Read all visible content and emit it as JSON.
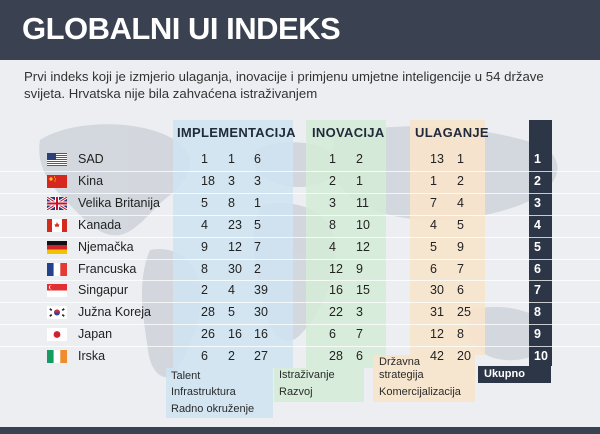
{
  "title": "GLOBALNI UI INDEKS",
  "subtitle": "Prvi indeks koji je izmjerio ulaganja, inovacije i primjenu umjetne inteligencije u 54 države svijeta. Hrvatska nije bila zahvaćena istraživanjem",
  "groups": {
    "implementacija": "IMPLEMENTACIJA",
    "inovacija": "INOVACIJA",
    "ulaganje": "ULAGANJE"
  },
  "colors": {
    "implementacija": "#cfe3f1",
    "inovacija": "#d5ebd7",
    "ulaganje": "#f8e4cb",
    "ukupno": "#2d3646",
    "header": "#3a4150"
  },
  "rows": [
    {
      "flag": "usa-flag-icon",
      "country": "SAD",
      "talent": "1",
      "infrastruktura": "1",
      "radno": "6",
      "istrazivanje": "1",
      "razvoj": "2",
      "strategija": "13",
      "komercijalizacija": "1",
      "ukupno": "1"
    },
    {
      "flag": "china-flag-icon",
      "country": "Kina",
      "talent": "18",
      "infrastruktura": "3",
      "radno": "3",
      "istrazivanje": "2",
      "razvoj": "1",
      "strategija": "1",
      "komercijalizacija": "2",
      "ukupno": "2"
    },
    {
      "flag": "uk-flag-icon",
      "country": "Velika Britanija",
      "talent": "5",
      "infrastruktura": "8",
      "radno": "1",
      "istrazivanje": "3",
      "razvoj": "11",
      "strategija": "7",
      "komercijalizacija": "4",
      "ukupno": "3"
    },
    {
      "flag": "canada-flag-icon",
      "country": "Kanada",
      "talent": "4",
      "infrastruktura": "23",
      "radno": "5",
      "istrazivanje": "8",
      "razvoj": "10",
      "strategija": "4",
      "komercijalizacija": "5",
      "ukupno": "4"
    },
    {
      "flag": "germany-flag-icon",
      "country": "Njemačka",
      "talent": "9",
      "infrastruktura": "12",
      "radno": "7",
      "istrazivanje": "4",
      "razvoj": "12",
      "strategija": "5",
      "komercijalizacija": "9",
      "ukupno": "5"
    },
    {
      "flag": "france-flag-icon",
      "country": "Francuska",
      "talent": "8",
      "infrastruktura": "30",
      "radno": "2",
      "istrazivanje": "12",
      "razvoj": "9",
      "strategija": "6",
      "komercijalizacija": "7",
      "ukupno": "6"
    },
    {
      "flag": "singapore-flag-icon",
      "country": "Singapur",
      "talent": "2",
      "infrastruktura": "4",
      "radno": "39",
      "istrazivanje": "16",
      "razvoj": "15",
      "strategija": "30",
      "komercijalizacija": "6",
      "ukupno": "7"
    },
    {
      "flag": "south-korea-flag-icon",
      "country": "Južna Koreja",
      "talent": "28",
      "infrastruktura": "5",
      "radno": "30",
      "istrazivanje": "22",
      "razvoj": "3",
      "strategija": "31",
      "komercijalizacija": "25",
      "ukupno": "8"
    },
    {
      "flag": "japan-flag-icon",
      "country": "Japan",
      "talent": "26",
      "infrastruktura": "16",
      "radno": "16",
      "istrazivanje": "6",
      "razvoj": "7",
      "strategija": "12",
      "komercijalizacija": "8",
      "ukupno": "9"
    },
    {
      "flag": "ireland-flag-icon",
      "country": "Irska",
      "talent": "6",
      "infrastruktura": "2",
      "radno": "27",
      "istrazivanje": "28",
      "razvoj": "6",
      "strategija": "42",
      "komercijalizacija": "20",
      "ukupno": "10"
    }
  ],
  "legend": {
    "talent": "Talent",
    "infrastruktura": "Infrastruktura",
    "radno": "Radno okruženje",
    "istrazivanje": "Istraživanje",
    "razvoj": "Razvoj",
    "strategija_1": "Državna",
    "strategija_2": "strategija",
    "komercijalizacija": "Komercijalizacija",
    "ukupno": "Ukupno"
  }
}
